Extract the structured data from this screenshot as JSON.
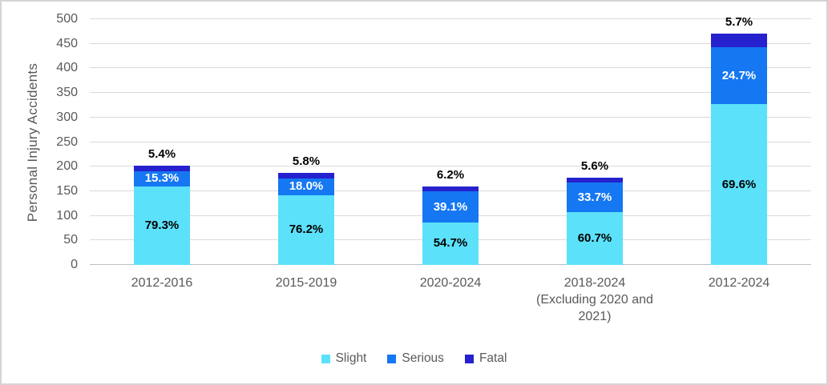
{
  "chart_data": {
    "type": "bar",
    "subtype": "stacked",
    "title": "",
    "ylabel": "Personal Injury Accidents",
    "xlabel": "",
    "ylim": [
      0,
      500
    ],
    "ytick_step": 50,
    "grid": true,
    "legend_position": "bottom",
    "categories": [
      "2012-2016",
      "2015-2019",
      "2020-2024",
      "2018-2024\n(Excluding 2020 and\n2021)",
      "2012-2024"
    ],
    "totals_estimated": [
      202,
      187,
      159,
      177,
      470
    ],
    "series": [
      {
        "name": "Slight",
        "color": "#5CE1FA",
        "label_color": "#000000",
        "label_position": "inside",
        "percents": [
          79.3,
          76.2,
          54.7,
          60.7,
          69.6
        ],
        "labels": [
          "79.3%",
          "76.2%",
          "54.7%",
          "60.7%",
          "69.6%"
        ]
      },
      {
        "name": "Serious",
        "color": "#1577F2",
        "label_color": "#FFFFFF",
        "label_position": "inside",
        "percents": [
          15.3,
          18.0,
          39.1,
          33.7,
          24.7
        ],
        "labels": [
          "15.3%",
          "18.0%",
          "39.1%",
          "33.7%",
          "24.7%"
        ]
      },
      {
        "name": "Fatal",
        "color": "#2621CE",
        "label_color": "#000000",
        "label_position": "above",
        "percents": [
          5.4,
          5.8,
          6.2,
          5.6,
          5.7
        ],
        "labels": [
          "5.4%",
          "5.8%",
          "6.2%",
          "5.6%",
          "5.7%"
        ]
      }
    ]
  },
  "colors": {
    "axis_text": "#595959",
    "gridline": "#D9D9D9",
    "baseline": "#BFBFBF",
    "background": "#FFFFFF",
    "frame_border": "#D4D4D4"
  }
}
